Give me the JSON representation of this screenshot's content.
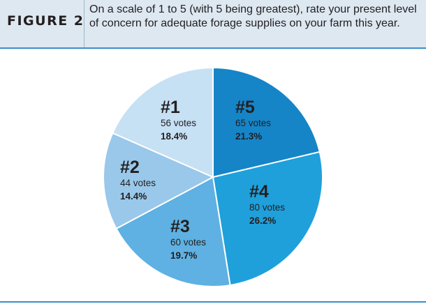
{
  "header": {
    "figure_label": "FIGURE 2",
    "question": "On a scale of 1 to 5 (with 5 being greatest), rate your present level of concern for adequate forage supplies on your farm this year."
  },
  "colors": {
    "header_bg": "#dde8f1",
    "rule": "#3a8fc9"
  },
  "chart_data": {
    "type": "pie",
    "title": "",
    "slices": [
      {
        "label": "#5",
        "votes_text": "65 votes",
        "percent_text": "21.3%",
        "value": 21.3,
        "color": "#1585c8"
      },
      {
        "label": "#4",
        "votes_text": "80 votes",
        "percent_text": "26.2%",
        "value": 26.2,
        "color": "#1fa0db"
      },
      {
        "label": "#3",
        "votes_text": "60 votes",
        "percent_text": "19.7%",
        "value": 19.7,
        "color": "#5eb1e2"
      },
      {
        "label": "#2",
        "votes_text": "44 votes",
        "percent_text": "14.4%",
        "value": 14.4,
        "color": "#99c8ea"
      },
      {
        "label": "#1",
        "votes_text": "56 votes",
        "percent_text": "18.4%",
        "value": 18.4,
        "color": "#c6e0f4"
      }
    ],
    "start_angle": "12 o'clock",
    "direction": "clockwise"
  }
}
